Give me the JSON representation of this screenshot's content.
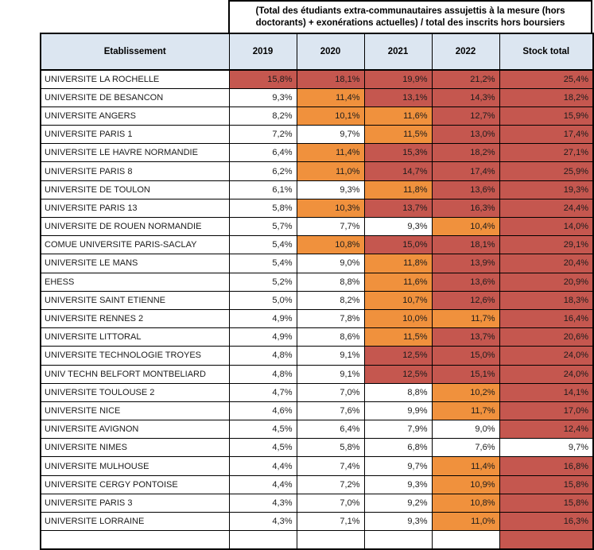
{
  "title": {
    "line1": "(Total des étudiants extra-communautaires assujettis à la mesure (hors",
    "line2": "doctorants) + exonérations actuelles) / total des inscrits hors boursiers"
  },
  "columns": [
    "Etablissement",
    "2019",
    "2020",
    "2021",
    "2022",
    "Stock total"
  ],
  "colors": {
    "red": "#C5574F",
    "orange": "#F0913D",
    "white": "#FFFFFF",
    "header_bg": "#DCE6F1",
    "border": "#000000"
  },
  "rows": [
    {
      "name": "UNIVERSITE LA ROCHELLE",
      "values": [
        "15,8%",
        "18,1%",
        "19,9%",
        "21,2%",
        "25,4%"
      ],
      "colors": [
        "red",
        "red",
        "red",
        "red",
        "red"
      ]
    },
    {
      "name": "UNIVERSITE DE BESANCON",
      "values": [
        "9,3%",
        "11,4%",
        "13,1%",
        "14,3%",
        "18,2%"
      ],
      "colors": [
        "white",
        "orange",
        "red",
        "red",
        "red"
      ]
    },
    {
      "name": "UNIVERSITE ANGERS",
      "values": [
        "8,2%",
        "10,1%",
        "11,6%",
        "12,7%",
        "15,9%"
      ],
      "colors": [
        "white",
        "orange",
        "orange",
        "red",
        "red"
      ]
    },
    {
      "name": "UNIVERSITE PARIS 1",
      "values": [
        "7,2%",
        "9,7%",
        "11,5%",
        "13,0%",
        "17,4%"
      ],
      "colors": [
        "white",
        "white",
        "orange",
        "red",
        "red"
      ]
    },
    {
      "name": "UNIVERSITE LE HAVRE NORMANDIE",
      "values": [
        "6,4%",
        "11,4%",
        "15,3%",
        "18,2%",
        "27,1%"
      ],
      "colors": [
        "white",
        "orange",
        "red",
        "red",
        "red"
      ]
    },
    {
      "name": "UNIVERSITE PARIS 8",
      "values": [
        "6,2%",
        "11,0%",
        "14,7%",
        "17,4%",
        "25,9%"
      ],
      "colors": [
        "white",
        "orange",
        "red",
        "red",
        "red"
      ]
    },
    {
      "name": "UNIVERSITE DE TOULON",
      "values": [
        "6,1%",
        "9,3%",
        "11,8%",
        "13,6%",
        "19,3%"
      ],
      "colors": [
        "white",
        "white",
        "orange",
        "red",
        "red"
      ]
    },
    {
      "name": "UNIVERSITE PARIS 13",
      "values": [
        "5,8%",
        "10,3%",
        "13,7%",
        "16,3%",
        "24,4%"
      ],
      "colors": [
        "white",
        "orange",
        "red",
        "red",
        "red"
      ]
    },
    {
      "name": "UNIVERSITE DE ROUEN NORMANDIE",
      "values": [
        "5,7%",
        "7,7%",
        "9,3%",
        "10,4%",
        "14,0%"
      ],
      "colors": [
        "white",
        "white",
        "white",
        "orange",
        "red"
      ]
    },
    {
      "name": "COMUE UNIVERSITE PARIS-SACLAY",
      "values": [
        "5,4%",
        "10,8%",
        "15,0%",
        "18,1%",
        "29,1%"
      ],
      "colors": [
        "white",
        "orange",
        "red",
        "red",
        "red"
      ]
    },
    {
      "name": "UNIVERSITE LE MANS",
      "values": [
        "5,4%",
        "9,0%",
        "11,8%",
        "13,9%",
        "20,4%"
      ],
      "colors": [
        "white",
        "white",
        "orange",
        "red",
        "red"
      ]
    },
    {
      "name": "EHESS",
      "values": [
        "5,2%",
        "8,8%",
        "11,6%",
        "13,6%",
        "20,9%"
      ],
      "colors": [
        "white",
        "white",
        "orange",
        "red",
        "red"
      ]
    },
    {
      "name": "UNIVERSITE SAINT ETIENNE",
      "values": [
        "5,0%",
        "8,2%",
        "10,7%",
        "12,6%",
        "18,3%"
      ],
      "colors": [
        "white",
        "white",
        "orange",
        "red",
        "red"
      ]
    },
    {
      "name": "UNIVERSITE RENNES 2",
      "values": [
        "4,9%",
        "7,8%",
        "10,0%",
        "11,7%",
        "16,4%"
      ],
      "colors": [
        "white",
        "white",
        "orange",
        "orange",
        "red"
      ]
    },
    {
      "name": "UNIVERSITE LITTORAL",
      "values": [
        "4,9%",
        "8,6%",
        "11,5%",
        "13,7%",
        "20,6%"
      ],
      "colors": [
        "white",
        "white",
        "orange",
        "red",
        "red"
      ]
    },
    {
      "name": "UNIVERSITE TECHNOLOGIE TROYES",
      "values": [
        "4,8%",
        "9,1%",
        "12,5%",
        "15,0%",
        "24,0%"
      ],
      "colors": [
        "white",
        "white",
        "red",
        "red",
        "red"
      ]
    },
    {
      "name": "UNIV TECHN BELFORT MONTBELIARD",
      "values": [
        "4,8%",
        "9,1%",
        "12,5%",
        "15,1%",
        "24,0%"
      ],
      "colors": [
        "white",
        "white",
        "red",
        "red",
        "red"
      ]
    },
    {
      "name": "UNIVERSITE TOULOUSE 2",
      "values": [
        "4,7%",
        "7,0%",
        "8,8%",
        "10,2%",
        "14,1%"
      ],
      "colors": [
        "white",
        "white",
        "white",
        "orange",
        "red"
      ]
    },
    {
      "name": "UNIVERSITE NICE",
      "values": [
        "4,6%",
        "7,6%",
        "9,9%",
        "11,7%",
        "17,0%"
      ],
      "colors": [
        "white",
        "white",
        "white",
        "orange",
        "red"
      ]
    },
    {
      "name": "UNIVERSITE AVIGNON",
      "values": [
        "4,5%",
        "6,4%",
        "7,9%",
        "9,0%",
        "12,4%"
      ],
      "colors": [
        "white",
        "white",
        "white",
        "white",
        "red"
      ]
    },
    {
      "name": "UNIVERSITE NIMES",
      "values": [
        "4,5%",
        "5,8%",
        "6,8%",
        "7,6%",
        "9,7%"
      ],
      "colors": [
        "white",
        "white",
        "white",
        "white",
        "white"
      ]
    },
    {
      "name": "UNIVERSITE MULHOUSE",
      "values": [
        "4,4%",
        "7,4%",
        "9,7%",
        "11,4%",
        "16,8%"
      ],
      "colors": [
        "white",
        "white",
        "white",
        "orange",
        "red"
      ]
    },
    {
      "name": "UNIVERSITE CERGY PONTOISE",
      "values": [
        "4,4%",
        "7,2%",
        "9,3%",
        "10,9%",
        "15,8%"
      ],
      "colors": [
        "white",
        "white",
        "white",
        "orange",
        "red"
      ]
    },
    {
      "name": "UNIVERSITE PARIS 3",
      "values": [
        "4,3%",
        "7,0%",
        "9,2%",
        "10,8%",
        "15,8%"
      ],
      "colors": [
        "white",
        "white",
        "white",
        "orange",
        "red"
      ]
    },
    {
      "name": "UNIVERSITE LORRAINE",
      "values": [
        "4,3%",
        "7,1%",
        "9,3%",
        "11,0%",
        "16,3%"
      ],
      "colors": [
        "white",
        "white",
        "white",
        "orange",
        "red"
      ]
    }
  ],
  "partial_row": {
    "colors": [
      "white",
      "white",
      "white",
      "white",
      "red"
    ]
  }
}
